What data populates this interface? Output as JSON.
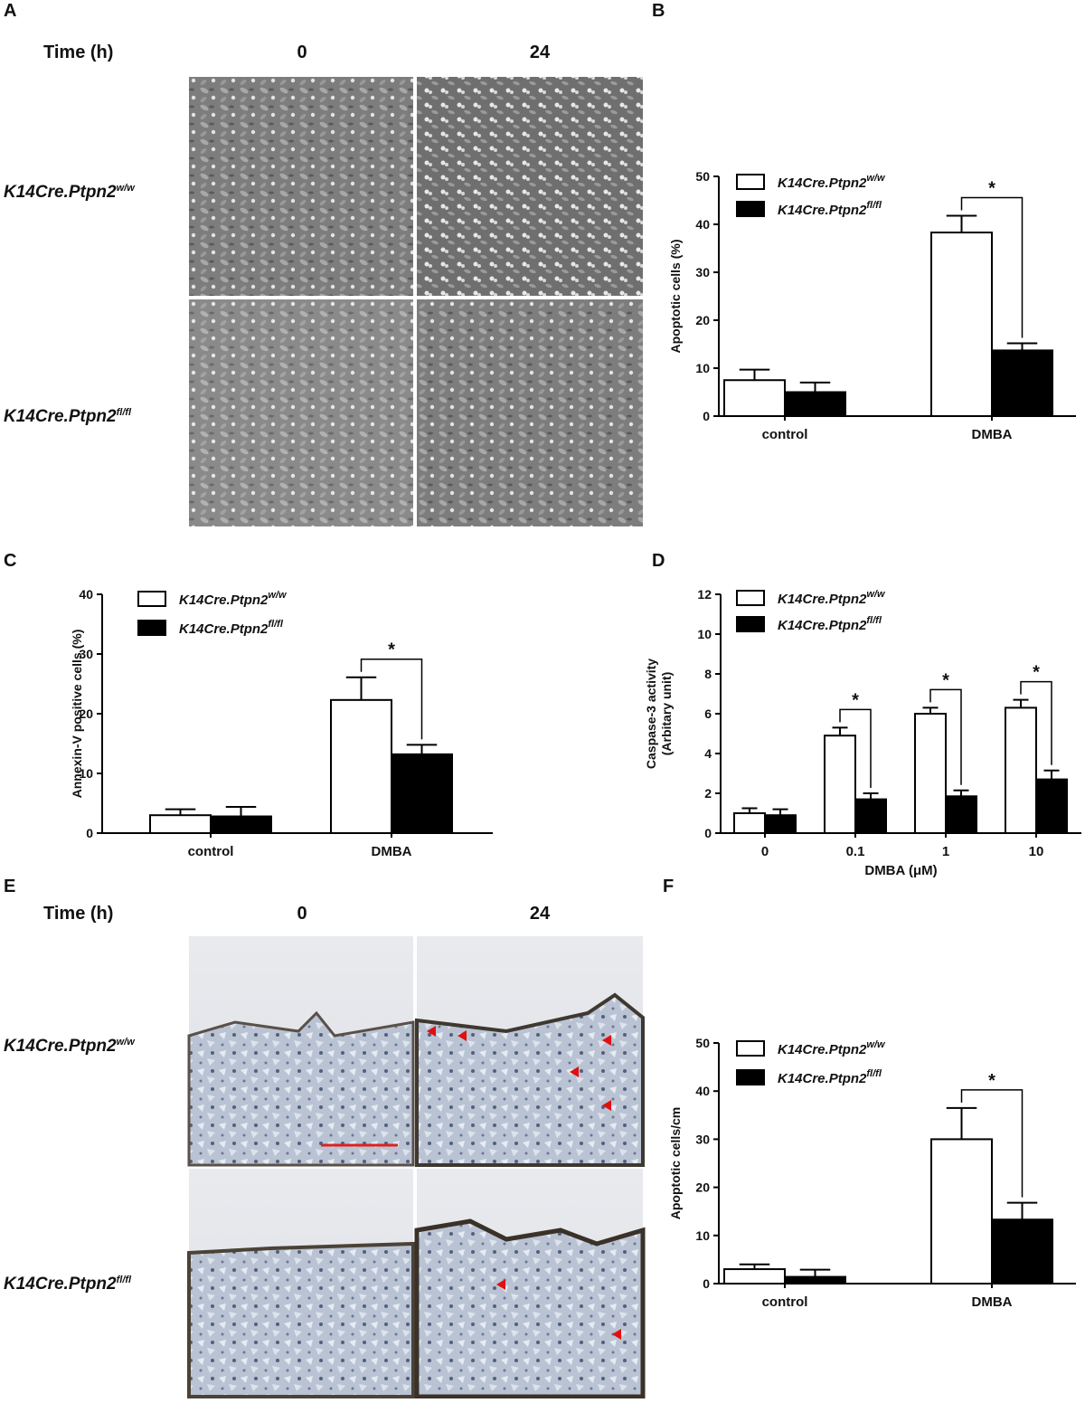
{
  "panel_labels": [
    "A",
    "B",
    "C",
    "D",
    "E",
    "F"
  ],
  "micrographs": [
    {
      "time_title": "Time (h)",
      "times": [
        "0",
        "24"
      ],
      "rows": [
        {
          "base": "K14Cre.Ptpn2",
          "sup": "w/w"
        },
        {
          "base": "K14Cre.Ptpn2",
          "sup": "fl/fl"
        }
      ]
    },
    {
      "time_title": "Time (h)",
      "times": [
        "0",
        "24"
      ],
      "rows": [
        {
          "base": "K14Cre.Ptpn2",
          "sup": "w/w"
        },
        {
          "base": "K14Cre.Ptpn2",
          "sup": "fl/fl"
        }
      ]
    }
  ],
  "chart_data": [
    {
      "type": "bar",
      "ylabel": [
        "Apoptotic cells (%)"
      ],
      "categories": [
        "control",
        "DMBA"
      ],
      "series": [
        {
          "name": "K14Cre.Ptpn2",
          "superscript": "w/w",
          "color": "#ffffff",
          "values": [
            7.5,
            38.3
          ],
          "errors": [
            2.2,
            3.5
          ]
        },
        {
          "name": "K14Cre.Ptpn2",
          "superscript": "fl/fl",
          "color": "#000000",
          "values": [
            5.0,
            13.7
          ],
          "errors": [
            2.0,
            1.5
          ]
        }
      ],
      "ylim": [
        0,
        50
      ],
      "yticks": [
        0,
        10,
        20,
        30,
        40,
        50
      ],
      "legend": "upper-left",
      "significance": [
        {
          "category": "DMBA",
          "label": "*"
        }
      ]
    },
    {
      "type": "bar",
      "ylabel": [
        "Annexin-V positive cells (%)"
      ],
      "categories": [
        "control",
        "DMBA"
      ],
      "series": [
        {
          "name": "K14Cre.Ptpn2",
          "superscript": "w/w",
          "color": "#ffffff",
          "values": [
            3.0,
            22.3
          ],
          "errors": [
            1.0,
            3.8
          ]
        },
        {
          "name": "K14Cre.Ptpn2",
          "superscript": "fl/fl",
          "color": "#000000",
          "values": [
            2.8,
            13.2
          ],
          "errors": [
            1.6,
            1.6
          ]
        }
      ],
      "ylim": [
        0,
        40
      ],
      "yticks": [
        0,
        10,
        20,
        30,
        40
      ],
      "legend": "upper-left",
      "significance": [
        {
          "category": "DMBA",
          "label": "*"
        }
      ]
    },
    {
      "type": "bar",
      "ylabel": [
        "Caspase-3 activity",
        "(Arbitary unit)"
      ],
      "xlabel": "DMBA (μM)",
      "categories": [
        "0",
        "0.1",
        "1",
        "10"
      ],
      "series": [
        {
          "name": "K14Cre.Ptpn2",
          "superscript": "w/w",
          "color": "#ffffff",
          "values": [
            1.0,
            4.9,
            6.0,
            6.3
          ],
          "errors": [
            0.25,
            0.4,
            0.3,
            0.4
          ]
        },
        {
          "name": "K14Cre.Ptpn2",
          "superscript": "fl/fl",
          "color": "#000000",
          "values": [
            0.9,
            1.7,
            1.85,
            2.7
          ],
          "errors": [
            0.3,
            0.3,
            0.3,
            0.45
          ]
        }
      ],
      "ylim": [
        0,
        12
      ],
      "yticks": [
        0,
        2,
        4,
        6,
        8,
        10,
        12
      ],
      "legend": "upper-left",
      "significance": [
        {
          "category": "0.1",
          "label": "*"
        },
        {
          "category": "1",
          "label": "*"
        },
        {
          "category": "10",
          "label": "*"
        }
      ]
    },
    {
      "type": "bar",
      "ylabel": [
        "Apoptotic cells/cm"
      ],
      "categories": [
        "control",
        "DMBA"
      ],
      "series": [
        {
          "name": "K14Cre.Ptpn2",
          "superscript": "w/w",
          "color": "#ffffff",
          "values": [
            3.0,
            30.0
          ],
          "errors": [
            1.0,
            6.5
          ]
        },
        {
          "name": "K14Cre.Ptpn2",
          "superscript": "fl/fl",
          "color": "#000000",
          "values": [
            1.4,
            13.3
          ],
          "errors": [
            1.5,
            3.5
          ]
        }
      ],
      "ylim": [
        0,
        50
      ],
      "yticks": [
        0,
        10,
        20,
        30,
        40,
        50
      ],
      "legend": "upper-left",
      "significance": [
        {
          "category": "DMBA",
          "label": "*"
        }
      ]
    }
  ]
}
